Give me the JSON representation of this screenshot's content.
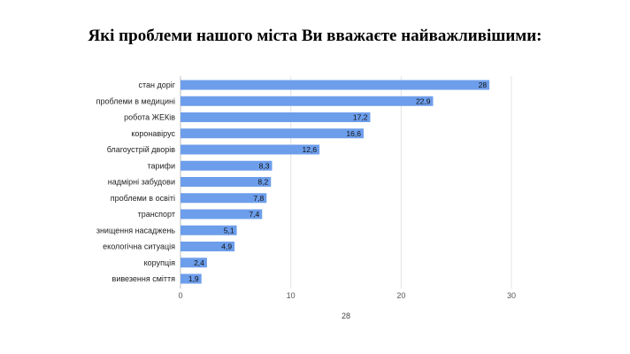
{
  "chart_data": {
    "type": "bar",
    "orientation": "horizontal",
    "title": "Які проблеми нашого міста Ви вважаєте найважливішими:",
    "categories": [
      "стан доріг",
      "проблеми в медицині",
      "робота ЖЕКів",
      "коронавірус",
      "благоустрій дворів",
      "тарифи",
      "надмірні забудови",
      "проблеми в освіті",
      "транспорт",
      "знищення насаджень",
      "екологічна ситуація",
      "корупція",
      "вивезення сміття"
    ],
    "values": [
      28,
      22.9,
      17.2,
      16.6,
      12.6,
      8.3,
      8.2,
      7.8,
      7.4,
      5.1,
      4.9,
      2.4,
      1.9
    ],
    "value_labels": [
      "28",
      "22,9",
      "17,2",
      "16,6",
      "12,6",
      "8,3",
      "8,2",
      "7,8",
      "7,4",
      "5,1",
      "4,9",
      "2,4",
      "1,9"
    ],
    "xlim": [
      0,
      30
    ],
    "xticks": [
      0,
      10,
      20,
      30
    ],
    "xlabel": "28",
    "ylabel": "",
    "grid": true,
    "legend": "none",
    "bar_color": "#6d9eeb"
  }
}
